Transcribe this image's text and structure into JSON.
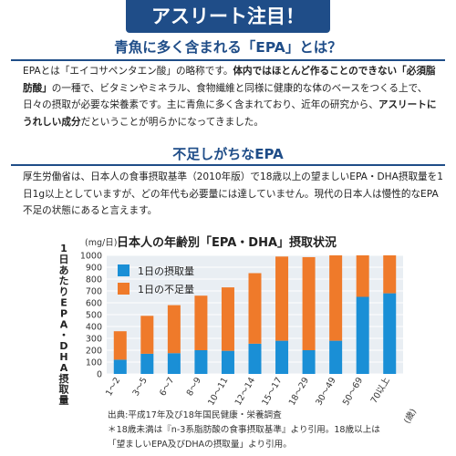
{
  "banner": {
    "title": "アスリート注目！"
  },
  "section1": {
    "title": "青魚に多く含まれる「EPA」とは？",
    "paragraph": [
      {
        "t": "EPAとは「エイコサペンタエン酸」の略称です。",
        "b": false
      },
      {
        "t": "体内ではほとんど作ることのできない「必須脂肪酸」",
        "b": true
      },
      {
        "t": "の一種で、ビタミンやミネラル、食物繊維と同様に健康的な体のベースをつくる上で、日々の摂取が必要な栄養素です。主に青魚に多く含まれており、近年の研究から、",
        "b": false
      },
      {
        "t": "アスリートにうれしい成分",
        "b": true
      },
      {
        "t": "だということが明らかになってきました。",
        "b": false
      }
    ]
  },
  "section2": {
    "title": "不足しがちなEPA",
    "paragraph": "厚生労働省は、日本人の食事摂取基準（2010年版）で18歳以上の望ましいEPA・DHA摂取量を1日1g以上としていますが、どの年代も必要量には達していません。現代の日本人は慢性的なEPA不足の状態にあると言えます。"
  },
  "chart_data": {
    "type": "bar",
    "stacked": true,
    "title": "日本人の年齢別「EPA・DHA」摂取状況",
    "ylabel": "1日あたりEPA・DHA摂取量",
    "yunit": "(mg/日)",
    "xunit": "(歳)",
    "ylim": [
      0,
      1000
    ],
    "yticks": [
      0,
      100,
      200,
      300,
      400,
      500,
      600,
      700,
      800,
      900,
      1000
    ],
    "categories": [
      "1〜2",
      "3〜5",
      "6〜7",
      "8〜9",
      "10〜11",
      "12〜14",
      "15〜17",
      "18〜29",
      "30〜49",
      "50〜69",
      "70以上"
    ],
    "series": [
      {
        "name": "1日の摂取量",
        "color": "#1a8fd6",
        "values": [
          120,
          170,
          175,
          200,
          195,
          255,
          280,
          200,
          280,
          650,
          680
        ]
      },
      {
        "name": "1日の不足量",
        "color": "#ef7a2a",
        "values": [
          240,
          320,
          405,
          460,
          535,
          595,
          710,
          785,
          720,
          350,
          320
        ]
      }
    ],
    "legend_position": "top-left",
    "grid": true
  },
  "source": {
    "line1": "出典:平成17年及び18年国民健康・栄養調査",
    "line2": "＊18歳未満は『n-3系脂肪酸の食事摂取基準』より引用。18歳以上は",
    "line3": "「望ましいEPA及びDHAの摂取量」より引用。"
  }
}
